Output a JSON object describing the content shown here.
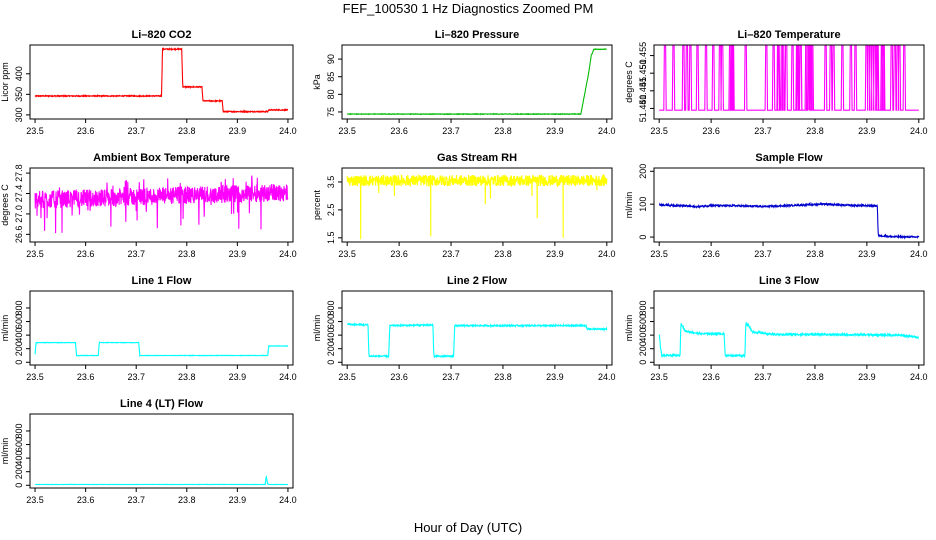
{
  "figure": {
    "title": "FEF_100530  1 Hz Diagnostics Zoomed PM",
    "xlabel": "Hour of Day (UTC)"
  },
  "chart_data": [
    {
      "type": "line",
      "title": "Li–820 CO2",
      "ylabel": "Licor ppm",
      "color": "#ff0000",
      "xlim": [
        23.49,
        24.01
      ],
      "ylim": [
        290,
        470
      ],
      "xticks": [
        "23.5",
        "23.6",
        "23.7",
        "23.8",
        "23.9",
        "24.0"
      ],
      "yticks": [
        {
          "v": 300,
          "label": "300"
        },
        {
          "v": 350,
          "label": "350"
        },
        {
          "v": 400,
          "label": "400"
        }
      ],
      "noise": 1.2,
      "x": [
        23.5,
        23.75,
        23.752,
        23.79,
        23.792,
        23.83,
        23.832,
        23.87,
        23.872,
        23.96,
        23.962,
        24.0
      ],
      "y": [
        346,
        346,
        460,
        460,
        368,
        368,
        334,
        334,
        308,
        308,
        312,
        312
      ]
    },
    {
      "type": "line",
      "title": "Li–820 Pressure",
      "ylabel": "kPa",
      "color": "#00bb00",
      "xlim": [
        23.49,
        24.01
      ],
      "ylim": [
        73,
        94
      ],
      "xticks": [
        "23.5",
        "23.6",
        "23.7",
        "23.8",
        "23.9",
        "24.0"
      ],
      "yticks": [
        {
          "v": 75,
          "label": "75"
        },
        {
          "v": 80,
          "label": "80"
        },
        {
          "v": 85,
          "label": "85"
        },
        {
          "v": 90,
          "label": "90"
        }
      ],
      "noise": 0.08,
      "x": [
        23.5,
        23.95,
        23.965,
        23.97,
        23.975,
        24.0
      ],
      "y": [
        74.4,
        74.4,
        86,
        91,
        92.8,
        92.8
      ]
    },
    {
      "type": "line",
      "title": "Li–820 Temperature",
      "ylabel": "degrees C",
      "color": "#ff00ff",
      "xlim": [
        23.49,
        24.01
      ],
      "ylim": [
        51.437,
        51.458
      ],
      "xticks": [
        "23.5",
        "23.6",
        "23.7",
        "23.8",
        "23.9",
        "24.0"
      ],
      "yticks": [
        {
          "v": 51.44,
          "label": "51.440"
        },
        {
          "v": 51.445,
          "label": "51.445"
        },
        {
          "v": 51.45,
          "label": "51.450"
        },
        {
          "v": 51.455,
          "label": "51.455"
        }
      ],
      "spikes": {
        "base": 51.4395,
        "top": 51.4585,
        "count": 55
      }
    },
    {
      "type": "line",
      "title": "Ambient Box Temperature",
      "ylabel": "degrees C",
      "color": "#ff00ff",
      "xlim": [
        23.49,
        24.01
      ],
      "ylim": [
        26.45,
        27.9
      ],
      "xticks": [
        "23.5",
        "23.6",
        "23.7",
        "23.8",
        "23.9",
        "24.0"
      ],
      "yticks": [
        {
          "v": 26.6,
          "label": "26.6"
        },
        {
          "v": 27.0,
          "label": "27.0"
        },
        {
          "v": 27.4,
          "label": "27.4"
        },
        {
          "v": 27.8,
          "label": "27.8"
        }
      ],
      "band": {
        "lo": [
          27.1,
          27.25
        ],
        "hi": [
          27.45,
          27.6
        ],
        "dips_to": 26.6
      }
    },
    {
      "type": "line",
      "title": "Gas Stream RH",
      "ylabel": "percent",
      "color": "#ffff00",
      "xlim": [
        23.49,
        24.01
      ],
      "ylim": [
        1.35,
        4.0
      ],
      "xticks": [
        "23.5",
        "23.6",
        "23.7",
        "23.8",
        "23.9",
        "24.0"
      ],
      "yticks": [
        {
          "v": 1.5,
          "label": "1.5"
        },
        {
          "v": 2.5,
          "label": "2.5"
        },
        {
          "v": 3.5,
          "label": "3.5"
        }
      ],
      "band": {
        "lo": [
          3.35,
          3.35
        ],
        "hi": [
          3.75,
          3.75
        ]
      },
      "dips": [
        [
          23.525,
          1.45
        ],
        [
          23.66,
          1.55
        ],
        [
          23.765,
          2.7
        ],
        [
          23.775,
          2.9
        ],
        [
          23.855,
          3.0
        ],
        [
          23.865,
          2.2
        ],
        [
          23.915,
          1.5
        ],
        [
          23.59,
          3.0
        ],
        [
          23.56,
          3.1
        ],
        [
          23.98,
          3.2
        ]
      ]
    },
    {
      "type": "line",
      "title": "Sample Flow",
      "ylabel": "ml/min",
      "color": "#0000cc",
      "xlim": [
        23.49,
        24.01
      ],
      "ylim": [
        -15,
        210
      ],
      "xticks": [
        "23.5",
        "23.6",
        "23.7",
        "23.8",
        "23.9",
        "24.0"
      ],
      "yticks": [
        {
          "v": 0,
          "label": "0"
        },
        {
          "v": 100,
          "label": "100"
        },
        {
          "v": 200,
          "label": "200"
        }
      ],
      "noise": 2.5,
      "x": [
        23.5,
        23.55,
        23.57,
        23.6,
        23.65,
        23.7,
        23.75,
        23.8,
        23.82,
        23.85,
        23.92,
        23.922,
        23.95,
        24.0
      ],
      "y": [
        98,
        95,
        92,
        96,
        95,
        93,
        96,
        99,
        101,
        97,
        95,
        5,
        1,
        0
      ]
    },
    {
      "type": "line",
      "title": "Line 1 Flow",
      "ylabel": "ml/min",
      "color": "#00ffff",
      "xlim": [
        23.49,
        24.01
      ],
      "ylim": [
        -40,
        1050
      ],
      "xticks": [
        "23.5",
        "23.6",
        "23.7",
        "23.8",
        "23.9",
        "24.0"
      ],
      "yticks": [
        {
          "v": 0,
          "label": "0"
        },
        {
          "v": 200,
          "label": "200"
        },
        {
          "v": 400,
          "label": "400"
        },
        {
          "v": 600,
          "label": "600"
        },
        {
          "v": 800,
          "label": "800"
        }
      ],
      "noise": 3,
      "x": [
        23.5,
        23.502,
        23.58,
        23.582,
        23.625,
        23.627,
        23.705,
        23.707,
        23.96,
        23.962,
        24.0
      ],
      "y": [
        120,
        290,
        290,
        100,
        100,
        290,
        290,
        100,
        100,
        240,
        240
      ]
    },
    {
      "type": "line",
      "title": "Line 2 Flow",
      "ylabel": "ml/min",
      "color": "#00ffff",
      "xlim": [
        23.49,
        24.01
      ],
      "ylim": [
        -40,
        1050
      ],
      "xticks": [
        "23.5",
        "23.6",
        "23.7",
        "23.8",
        "23.9",
        "24.0"
      ],
      "yticks": [
        {
          "v": 0,
          "label": "0"
        },
        {
          "v": 200,
          "label": "200"
        },
        {
          "v": 400,
          "label": "400"
        },
        {
          "v": 600,
          "label": "600"
        },
        {
          "v": 800,
          "label": "800"
        }
      ],
      "noise": 10,
      "x": [
        23.5,
        23.54,
        23.542,
        23.58,
        23.582,
        23.665,
        23.667,
        23.705,
        23.707,
        23.96,
        23.962,
        24.0
      ],
      "y": [
        560,
        550,
        90,
        90,
        540,
        550,
        90,
        90,
        540,
        540,
        490,
        490
      ]
    },
    {
      "type": "line",
      "title": "Line 3 Flow",
      "ylabel": "ml/min",
      "color": "#00ffff",
      "xlim": [
        23.49,
        24.01
      ],
      "ylim": [
        -40,
        1050
      ],
      "xticks": [
        "23.5",
        "23.6",
        "23.7",
        "23.8",
        "23.9",
        "24.0"
      ],
      "yticks": [
        {
          "v": 0,
          "label": "0"
        },
        {
          "v": 200,
          "label": "200"
        },
        {
          "v": 400,
          "label": "400"
        },
        {
          "v": 600,
          "label": "600"
        },
        {
          "v": 800,
          "label": "800"
        }
      ],
      "noise": 14,
      "x": [
        23.5,
        23.502,
        23.505,
        23.54,
        23.542,
        23.55,
        23.58,
        23.625,
        23.627,
        23.665,
        23.667,
        23.68,
        23.72,
        23.8,
        23.96,
        24.0
      ],
      "y": [
        420,
        250,
        100,
        100,
        580,
        460,
        420,
        420,
        100,
        100,
        590,
        450,
        410,
        410,
        400,
        370
      ]
    },
    {
      "type": "line",
      "title": "Line 4 (LT) Flow",
      "ylabel": "ml/min",
      "color": "#00ffff",
      "xlim": [
        23.49,
        24.01
      ],
      "ylim": [
        -40,
        1050
      ],
      "xticks": [
        "23.5",
        "23.6",
        "23.7",
        "23.8",
        "23.9",
        "24.0"
      ],
      "yticks": [
        {
          "v": 0,
          "label": "0"
        },
        {
          "v": 200,
          "label": "200"
        },
        {
          "v": 400,
          "label": "400"
        },
        {
          "v": 600,
          "label": "600"
        },
        {
          "v": 800,
          "label": "800"
        }
      ],
      "noise": 2,
      "x": [
        23.5,
        23.955,
        23.957,
        23.96,
        23.963,
        24.0
      ],
      "y": [
        12,
        12,
        130,
        20,
        12,
        12
      ]
    }
  ]
}
